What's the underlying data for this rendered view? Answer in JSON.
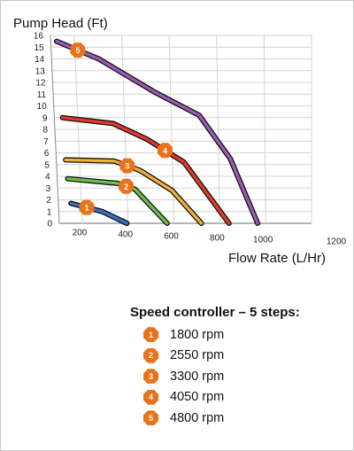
{
  "chart_data": {
    "type": "line",
    "ylabel": "Pump Head (Ft)",
    "xlabel": "Flow Rate (L/Hr)",
    "xlim": [
      100,
      1200
    ],
    "ylim": [
      0,
      16
    ],
    "x_ticks": [
      200,
      400,
      600,
      800,
      1000,
      1200
    ],
    "y_ticks": [
      0,
      1,
      2,
      3,
      4,
      5,
      6,
      7,
      8,
      9,
      10,
      11,
      12,
      13,
      14,
      15,
      16
    ],
    "grid": true,
    "series": [
      {
        "name": "1",
        "color": "#3a6fbf",
        "marker_at": 1,
        "x": [
          155,
          290,
          395
        ],
        "y": [
          1.7,
          1.0,
          0.0
        ]
      },
      {
        "name": "2",
        "color": "#6abf4b",
        "marker_at": 2,
        "x": [
          145,
          360,
          435,
          570
        ],
        "y": [
          3.8,
          3.4,
          2.9,
          0.0
        ]
      },
      {
        "name": "3",
        "color": "#f0b03c",
        "marker_at": 2,
        "x": [
          140,
          350,
          460,
          595,
          720
        ],
        "y": [
          5.4,
          5.3,
          4.5,
          2.8,
          0.0
        ]
      },
      {
        "name": "4",
        "color": "#e03a2a",
        "marker_at": 3,
        "x": [
          135,
          350,
          490,
          650,
          840
        ],
        "y": [
          9.0,
          8.5,
          7.2,
          5.2,
          0.0
        ]
      },
      {
        "name": "5",
        "color": "#9a5ab5",
        "marker_at": 1,
        "x": [
          125,
          300,
          530,
          720,
          850,
          965
        ],
        "y": [
          15.5,
          14.0,
          11.2,
          9.2,
          5.5,
          0.0
        ]
      }
    ]
  },
  "legend": {
    "title": "Speed controller – 5 steps:",
    "items": [
      {
        "num": "1",
        "rpm": "1800 rpm"
      },
      {
        "num": "2",
        "rpm": "2550 rpm"
      },
      {
        "num": "3",
        "rpm": "3300 rpm"
      },
      {
        "num": "4",
        "rpm": "4050 rpm"
      },
      {
        "num": "5",
        "rpm": "4800 rpm"
      }
    ],
    "badge_color": "#e8731a"
  }
}
